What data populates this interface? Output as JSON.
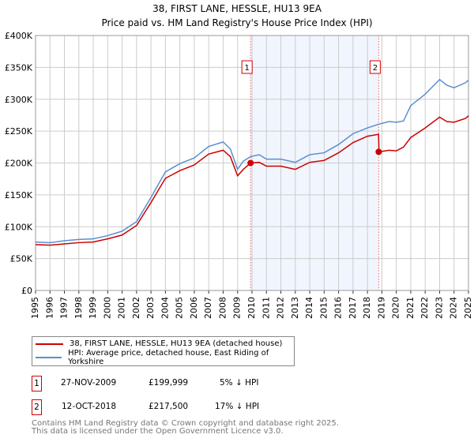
{
  "chart_data": {
    "type": "line",
    "title": "38, FIRST LANE, HESSLE, HU13 9EA",
    "subtitle": "Price paid vs. HM Land Registry's House Price Index (HPI)",
    "xlim": [
      1995,
      2025
    ],
    "ylim": [
      0,
      400000
    ],
    "x_ticks": [
      "1995",
      "1996",
      "1997",
      "1998",
      "1999",
      "2000",
      "2001",
      "2002",
      "2003",
      "2004",
      "2005",
      "2006",
      "2007",
      "2008",
      "2009",
      "2010",
      "2011",
      "2012",
      "2013",
      "2014",
      "2015",
      "2016",
      "2017",
      "2018",
      "2019",
      "2020",
      "2021",
      "2022",
      "2023",
      "2024",
      "2025"
    ],
    "y_ticks": [
      {
        "v": 0,
        "l": "£0"
      },
      {
        "v": 50000,
        "l": "£50K"
      },
      {
        "v": 100000,
        "l": "£100K"
      },
      {
        "v": 150000,
        "l": "£150K"
      },
      {
        "v": 200000,
        "l": "£200K"
      },
      {
        "v": 250000,
        "l": "£250K"
      },
      {
        "v": 300000,
        "l": "£300K"
      },
      {
        "v": 350000,
        "l": "£350K"
      },
      {
        "v": 400000,
        "l": "£400K"
      }
    ],
    "grid": true,
    "series": [
      {
        "name": "38, FIRST LANE, HESSLE, HU13 9EA (detached house)",
        "color": "#cc0000",
        "x": [
          1995,
          1996,
          1997,
          1998,
          1999,
          2000,
          2001,
          2002,
          2003,
          2004,
          2005,
          2006,
          2007,
          2008,
          2008.5,
          2009,
          2009.4,
          2009.9,
          2010.5,
          2011,
          2012,
          2013,
          2014,
          2015,
          2016,
          2017,
          2018,
          2018.77,
          2018.8,
          2019.5,
          2020,
          2020.5,
          2021,
          2022,
          2023,
          2023.5,
          2024,
          2024.8,
          2025
        ],
        "y": [
          72000,
          71000,
          73000,
          75000,
          76000,
          81000,
          87000,
          102000,
          138000,
          176000,
          188000,
          197000,
          214000,
          220000,
          210000,
          180000,
          190000,
          199999,
          201000,
          195000,
          195000,
          190000,
          201000,
          204000,
          216000,
          232000,
          242000,
          245000,
          217500,
          220000,
          219000,
          225000,
          240000,
          255000,
          272000,
          265000,
          264000,
          270000,
          274000
        ]
      },
      {
        "name": "HPI: Average price, detached house, East Riding of Yorkshire",
        "color": "#5b8fd0",
        "x": [
          1995,
          1996,
          1997,
          1998,
          1999,
          2000,
          2001,
          2002,
          2003,
          2004,
          2005,
          2006,
          2007,
          2008,
          2008.5,
          2009,
          2009.4,
          2009.9,
          2010.5,
          2011,
          2012,
          2013,
          2014,
          2015,
          2016,
          2017,
          2018,
          2018.8,
          2019.5,
          2020,
          2020.5,
          2021,
          2022,
          2023,
          2023.5,
          2024,
          2024.8,
          2025
        ],
        "y": [
          76000,
          75000,
          78000,
          80000,
          81000,
          86000,
          93000,
          108000,
          146000,
          186000,
          199000,
          208000,
          226000,
          233000,
          222000,
          190000,
          203000,
          210000,
          213000,
          206000,
          206000,
          201000,
          213000,
          216000,
          229000,
          246000,
          255000,
          261000,
          265000,
          264000,
          266000,
          290000,
          308000,
          331000,
          322000,
          318000,
          326000,
          330000
        ]
      }
    ],
    "sales": [
      {
        "label": "1",
        "x": 2009.9,
        "date": "27-NOV-2009",
        "price": "£199,999",
        "value": 199999,
        "hpi": "5% ↓ HPI"
      },
      {
        "label": "2",
        "x": 2018.78,
        "date": "12-OCT-2018",
        "price": "£217,500",
        "value": 217500,
        "hpi": "17% ↓ HPI"
      }
    ],
    "legend_placement": "below"
  },
  "footer": [
    "Contains HM Land Registry data © Crown copyright and database right 2025.",
    "This data is licensed under the Open Government Licence v3.0."
  ]
}
